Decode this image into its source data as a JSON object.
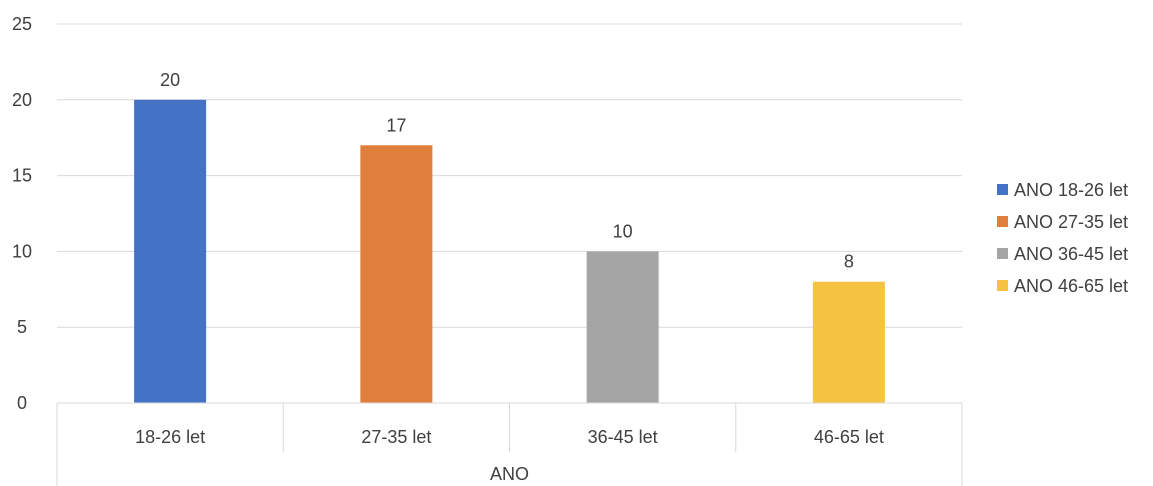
{
  "chart_data": {
    "type": "bar",
    "categories": [
      "18-26 let",
      "27-35 let",
      "36-45 let",
      "46-65 let"
    ],
    "series": [
      {
        "name": "ANO 18-26 let",
        "values": [
          20,
          null,
          null,
          null
        ],
        "color": "#4472C4"
      },
      {
        "name": "ANO 27-35 let",
        "values": [
          null,
          17,
          null,
          null
        ],
        "color": "#E07E3C"
      },
      {
        "name": "ANO 36-45 let",
        "values": [
          null,
          null,
          10,
          null
        ],
        "color": "#A5A5A5"
      },
      {
        "name": "ANO 46-65 let",
        "values": [
          null,
          null,
          null,
          8
        ],
        "color": "#F5C242"
      }
    ],
    "values": [
      20,
      17,
      10,
      8
    ],
    "data_labels": [
      "20",
      "17",
      "10",
      "8"
    ],
    "title": "",
    "xlabel": "ANO",
    "ylabel": "",
    "ylim": [
      0,
      25
    ],
    "yticks": [
      0,
      5,
      10,
      15,
      20,
      25
    ],
    "grid": true,
    "legend_position": "right"
  }
}
